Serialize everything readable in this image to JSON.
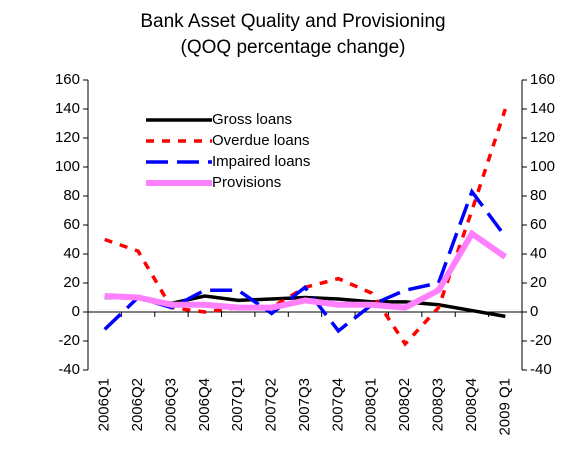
{
  "chart_data": {
    "type": "line",
    "title": "Bank Asset Quality and Provisioning",
    "subtitle": "(QOQ percentage change)",
    "categories": [
      "2006Q1",
      "2006Q2",
      "2006Q3",
      "2006Q4",
      "2007Q1",
      "2007Q2",
      "2007Q3",
      "2007Q4",
      "2008Q1",
      "2008Q2",
      "2008Q3",
      "2008Q4",
      "2009 Q1"
    ],
    "series": [
      {
        "name": "Gross loans",
        "color": "#000000",
        "dash": "solid",
        "values": [
          10,
          10,
          6,
          11,
          8,
          9,
          10,
          9,
          7,
          7,
          5,
          1,
          -3
        ]
      },
      {
        "name": "Overdue loans",
        "color": "#ff0000",
        "dash": "dotted",
        "values": [
          50,
          42,
          3,
          0,
          3,
          3,
          17,
          23,
          13,
          -22,
          3,
          70,
          140
        ]
      },
      {
        "name": "Impaired loans",
        "color": "#0000ff",
        "dash": "dashed",
        "values": [
          -12,
          10,
          3,
          15,
          15,
          -1,
          17,
          -13,
          5,
          15,
          20,
          83,
          52
        ]
      },
      {
        "name": "Provisions",
        "color": "#ff80ff",
        "dash": "thick",
        "values": [
          11,
          10,
          5,
          5,
          3,
          3,
          8,
          5,
          5,
          3,
          15,
          54,
          38
        ]
      }
    ],
    "ylim": [
      -40,
      160
    ],
    "yticks": [
      -40,
      -20,
      0,
      20,
      40,
      60,
      80,
      100,
      120,
      140,
      160
    ],
    "y2lim": [
      -40,
      160
    ],
    "y2ticks": [
      -40,
      -20,
      0,
      20,
      40,
      60,
      80,
      100,
      120,
      140,
      160
    ],
    "grid": false,
    "legend": "upper left"
  }
}
